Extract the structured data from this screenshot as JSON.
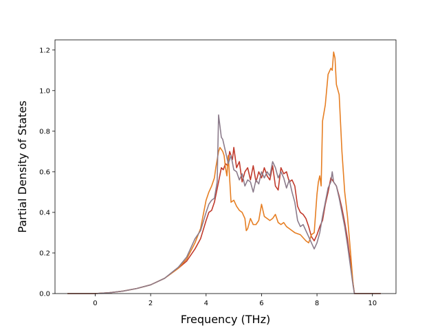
{
  "chart_data": {
    "type": "line",
    "title": "",
    "xlabel": "Frequency (THz)",
    "ylabel": "Partial Density of States",
    "xlim": [
      -1.45,
      10.85
    ],
    "ylim": [
      0.0,
      1.25
    ],
    "xticks": [
      0,
      2,
      4,
      6,
      8,
      10
    ],
    "yticks": [
      0.0,
      0.2,
      0.4,
      0.6,
      0.8,
      1.0,
      1.2
    ],
    "grid": false,
    "legend": "none",
    "series": [
      {
        "color": "#c0392b",
        "points": [
          [
            -1.0,
            0.0
          ],
          [
            0.0,
            0.0
          ],
          [
            0.5,
            0.004
          ],
          [
            1.0,
            0.012
          ],
          [
            1.5,
            0.025
          ],
          [
            2.0,
            0.043
          ],
          [
            2.5,
            0.075
          ],
          [
            3.0,
            0.125
          ],
          [
            3.3,
            0.16
          ],
          [
            3.6,
            0.22
          ],
          [
            3.8,
            0.27
          ],
          [
            4.0,
            0.36
          ],
          [
            4.1,
            0.4
          ],
          [
            4.2,
            0.41
          ],
          [
            4.3,
            0.45
          ],
          [
            4.45,
            0.55
          ],
          [
            4.55,
            0.62
          ],
          [
            4.62,
            0.61
          ],
          [
            4.7,
            0.64
          ],
          [
            4.78,
            0.63
          ],
          [
            4.85,
            0.7
          ],
          [
            4.95,
            0.66
          ],
          [
            5.0,
            0.72
          ],
          [
            5.1,
            0.62
          ],
          [
            5.2,
            0.65
          ],
          [
            5.3,
            0.55
          ],
          [
            5.4,
            0.6
          ],
          [
            5.5,
            0.62
          ],
          [
            5.6,
            0.56
          ],
          [
            5.7,
            0.63
          ],
          [
            5.8,
            0.55
          ],
          [
            5.9,
            0.6
          ],
          [
            6.0,
            0.57
          ],
          [
            6.1,
            0.62
          ],
          [
            6.2,
            0.58
          ],
          [
            6.3,
            0.56
          ],
          [
            6.4,
            0.63
          ],
          [
            6.5,
            0.53
          ],
          [
            6.6,
            0.51
          ],
          [
            6.7,
            0.62
          ],
          [
            6.8,
            0.59
          ],
          [
            6.9,
            0.6
          ],
          [
            7.0,
            0.55
          ],
          [
            7.1,
            0.56
          ],
          [
            7.2,
            0.53
          ],
          [
            7.3,
            0.43
          ],
          [
            7.4,
            0.4
          ],
          [
            7.5,
            0.39
          ],
          [
            7.6,
            0.37
          ],
          [
            7.7,
            0.33
          ],
          [
            7.8,
            0.28
          ],
          [
            7.9,
            0.26
          ],
          [
            8.0,
            0.29
          ],
          [
            8.1,
            0.33
          ],
          [
            8.2,
            0.36
          ],
          [
            8.3,
            0.44
          ],
          [
            8.4,
            0.5
          ],
          [
            8.5,
            0.57
          ],
          [
            8.6,
            0.55
          ],
          [
            8.7,
            0.53
          ],
          [
            8.8,
            0.48
          ],
          [
            8.9,
            0.42
          ],
          [
            9.0,
            0.35
          ],
          [
            9.1,
            0.27
          ],
          [
            9.2,
            0.16
          ],
          [
            9.3,
            0.05
          ],
          [
            9.35,
            0.0
          ],
          [
            10.3,
            0.0
          ]
        ]
      },
      {
        "color": "#e67e22",
        "points": [
          [
            -1.0,
            0.0
          ],
          [
            0.0,
            0.0
          ],
          [
            0.5,
            0.004
          ],
          [
            1.0,
            0.012
          ],
          [
            1.5,
            0.025
          ],
          [
            2.0,
            0.043
          ],
          [
            2.5,
            0.075
          ],
          [
            3.0,
            0.125
          ],
          [
            3.3,
            0.17
          ],
          [
            3.6,
            0.25
          ],
          [
            3.8,
            0.32
          ],
          [
            4.0,
            0.46
          ],
          [
            4.1,
            0.5
          ],
          [
            4.2,
            0.53
          ],
          [
            4.3,
            0.57
          ],
          [
            4.35,
            0.62
          ],
          [
            4.45,
            0.7
          ],
          [
            4.5,
            0.72
          ],
          [
            4.6,
            0.7
          ],
          [
            4.65,
            0.68
          ],
          [
            4.7,
            0.62
          ],
          [
            4.75,
            0.58
          ],
          [
            4.8,
            0.68
          ],
          [
            4.9,
            0.45
          ],
          [
            5.0,
            0.46
          ],
          [
            5.1,
            0.43
          ],
          [
            5.2,
            0.41
          ],
          [
            5.3,
            0.4
          ],
          [
            5.4,
            0.37
          ],
          [
            5.45,
            0.31
          ],
          [
            5.5,
            0.32
          ],
          [
            5.6,
            0.37
          ],
          [
            5.7,
            0.34
          ],
          [
            5.8,
            0.34
          ],
          [
            5.9,
            0.36
          ],
          [
            6.0,
            0.44
          ],
          [
            6.1,
            0.38
          ],
          [
            6.2,
            0.37
          ],
          [
            6.3,
            0.36
          ],
          [
            6.4,
            0.37
          ],
          [
            6.5,
            0.39
          ],
          [
            6.6,
            0.35
          ],
          [
            6.7,
            0.34
          ],
          [
            6.8,
            0.35
          ],
          [
            6.9,
            0.33
          ],
          [
            7.0,
            0.32
          ],
          [
            7.2,
            0.3
          ],
          [
            7.4,
            0.29
          ],
          [
            7.6,
            0.26
          ],
          [
            7.7,
            0.25
          ],
          [
            7.8,
            0.29
          ],
          [
            7.9,
            0.3
          ],
          [
            8.0,
            0.49
          ],
          [
            8.05,
            0.55
          ],
          [
            8.1,
            0.58
          ],
          [
            8.15,
            0.53
          ],
          [
            8.2,
            0.85
          ],
          [
            8.3,
            0.93
          ],
          [
            8.4,
            1.08
          ],
          [
            8.5,
            1.11
          ],
          [
            8.55,
            1.1
          ],
          [
            8.6,
            1.19
          ],
          [
            8.65,
            1.16
          ],
          [
            8.7,
            1.03
          ],
          [
            8.8,
            0.98
          ],
          [
            8.9,
            0.7
          ],
          [
            9.0,
            0.5
          ],
          [
            9.1,
            0.38
          ],
          [
            9.2,
            0.22
          ],
          [
            9.3,
            0.05
          ],
          [
            9.35,
            0.0
          ],
          [
            10.3,
            0.0
          ]
        ]
      },
      {
        "color": "#8b7b8b",
        "points": [
          [
            -1.0,
            0.0
          ],
          [
            0.0,
            0.0
          ],
          [
            0.5,
            0.004
          ],
          [
            1.0,
            0.012
          ],
          [
            1.5,
            0.025
          ],
          [
            2.0,
            0.043
          ],
          [
            2.5,
            0.075
          ],
          [
            3.0,
            0.13
          ],
          [
            3.3,
            0.18
          ],
          [
            3.6,
            0.27
          ],
          [
            3.8,
            0.31
          ],
          [
            4.0,
            0.4
          ],
          [
            4.1,
            0.44
          ],
          [
            4.2,
            0.46
          ],
          [
            4.3,
            0.47
          ],
          [
            4.4,
            0.55
          ],
          [
            4.45,
            0.88
          ],
          [
            4.55,
            0.77
          ],
          [
            4.6,
            0.76
          ],
          [
            4.7,
            0.7
          ],
          [
            4.8,
            0.64
          ],
          [
            4.9,
            0.68
          ],
          [
            5.0,
            0.61
          ],
          [
            5.1,
            0.6
          ],
          [
            5.2,
            0.56
          ],
          [
            5.3,
            0.59
          ],
          [
            5.4,
            0.53
          ],
          [
            5.5,
            0.56
          ],
          [
            5.6,
            0.55
          ],
          [
            5.7,
            0.5
          ],
          [
            5.8,
            0.56
          ],
          [
            5.9,
            0.54
          ],
          [
            6.0,
            0.6
          ],
          [
            6.1,
            0.57
          ],
          [
            6.2,
            0.6
          ],
          [
            6.3,
            0.58
          ],
          [
            6.4,
            0.65
          ],
          [
            6.5,
            0.62
          ],
          [
            6.6,
            0.57
          ],
          [
            6.7,
            0.6
          ],
          [
            6.8,
            0.57
          ],
          [
            6.9,
            0.52
          ],
          [
            7.0,
            0.56
          ],
          [
            7.1,
            0.5
          ],
          [
            7.2,
            0.45
          ],
          [
            7.3,
            0.36
          ],
          [
            7.4,
            0.33
          ],
          [
            7.5,
            0.34
          ],
          [
            7.6,
            0.31
          ],
          [
            7.7,
            0.28
          ],
          [
            7.8,
            0.25
          ],
          [
            7.9,
            0.22
          ],
          [
            8.0,
            0.25
          ],
          [
            8.1,
            0.3
          ],
          [
            8.2,
            0.38
          ],
          [
            8.3,
            0.45
          ],
          [
            8.4,
            0.52
          ],
          [
            8.5,
            0.55
          ],
          [
            8.55,
            0.6
          ],
          [
            8.6,
            0.55
          ],
          [
            8.7,
            0.53
          ],
          [
            8.8,
            0.47
          ],
          [
            8.9,
            0.4
          ],
          [
            9.0,
            0.33
          ],
          [
            9.1,
            0.24
          ],
          [
            9.2,
            0.14
          ],
          [
            9.3,
            0.04
          ],
          [
            9.35,
            0.0
          ],
          [
            10.3,
            0.0
          ]
        ]
      }
    ]
  }
}
